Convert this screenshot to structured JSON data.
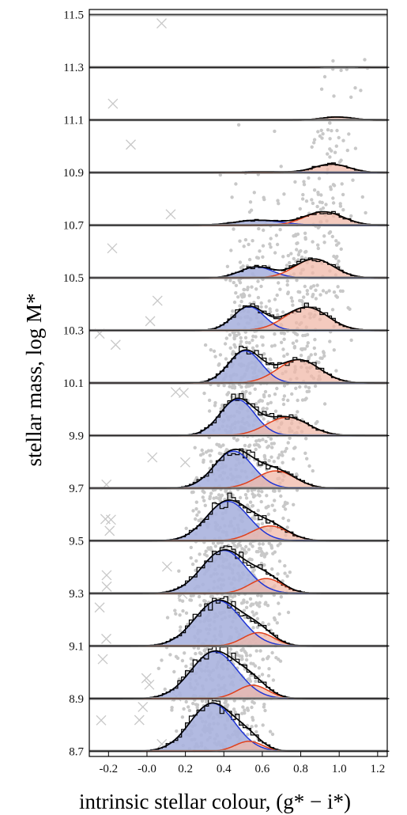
{
  "chart_data": {
    "type": "area",
    "title": "",
    "xlabel": "intrinsic stellar colour, (g* − i*)",
    "ylabel": "stellar mass, log M*",
    "xlim": [
      -0.3,
      1.25
    ],
    "ylim": [
      8.68,
      11.52
    ],
    "x_ticks": [
      "-0.2",
      "-0.0",
      "0.2",
      "0.4",
      "0.6",
      "0.8",
      "1.0",
      "1.2"
    ],
    "y_ticks": [
      "8.7",
      "8.9",
      "9.1",
      "9.3",
      "9.5",
      "9.7",
      "9.9",
      "10.1",
      "10.3",
      "10.5",
      "10.7",
      "10.9",
      "11.1",
      "11.3",
      "11.5"
    ],
    "colors": {
      "blue_line": "#1f35d6",
      "red_line": "#e0401c",
      "blue_fill": "#aab2de",
      "red_fill": "#f0b8a8",
      "scatter": "#c8c8c8",
      "histogram": "#000000"
    },
    "series": [
      {
        "name": "",
        "mass_bin": [
          8.7,
          8.9
        ],
        "blue": {
          "amp": 0.97,
          "mu": 0.34,
          "sigma": 0.115
        },
        "red": {
          "amp": 0.2,
          "mu": 0.53,
          "sigma": 0.07
        }
      },
      {
        "name": "",
        "mass_bin": [
          8.9,
          9.1
        ],
        "blue": {
          "amp": 0.95,
          "mu": 0.35,
          "sigma": 0.12
        },
        "red": {
          "amp": 0.27,
          "mu": 0.55,
          "sigma": 0.08
        }
      },
      {
        "name": "",
        "mass_bin": [
          9.1,
          9.3
        ],
        "blue": {
          "amp": 0.92,
          "mu": 0.37,
          "sigma": 0.12
        },
        "red": {
          "amp": 0.27,
          "mu": 0.58,
          "sigma": 0.08
        }
      },
      {
        "name": "",
        "mass_bin": [
          9.3,
          9.5
        ],
        "blue": {
          "amp": 0.87,
          "mu": 0.4,
          "sigma": 0.115
        },
        "red": {
          "amp": 0.3,
          "mu": 0.62,
          "sigma": 0.085
        }
      },
      {
        "name": "",
        "mass_bin": [
          9.5,
          9.7
        ],
        "blue": {
          "amp": 0.8,
          "mu": 0.42,
          "sigma": 0.11
        },
        "red": {
          "amp": 0.3,
          "mu": 0.64,
          "sigma": 0.095
        }
      },
      {
        "name": "",
        "mass_bin": [
          9.7,
          9.9
        ],
        "blue": {
          "amp": 0.75,
          "mu": 0.45,
          "sigma": 0.1
        },
        "red": {
          "amp": 0.35,
          "mu": 0.67,
          "sigma": 0.1
        }
      },
      {
        "name": "",
        "mass_bin": [
          9.9,
          10.1
        ],
        "blue": {
          "amp": 0.73,
          "mu": 0.47,
          "sigma": 0.09
        },
        "red": {
          "amp": 0.37,
          "mu": 0.73,
          "sigma": 0.11
        }
      },
      {
        "name": "",
        "mass_bin": [
          10.1,
          10.3
        ],
        "blue": {
          "amp": 0.65,
          "mu": 0.51,
          "sigma": 0.085
        },
        "red": {
          "amp": 0.47,
          "mu": 0.79,
          "sigma": 0.11
        }
      },
      {
        "name": "",
        "mass_bin": [
          10.3,
          10.5
        ],
        "blue": {
          "amp": 0.48,
          "mu": 0.53,
          "sigma": 0.08
        },
        "red": {
          "amp": 0.47,
          "mu": 0.83,
          "sigma": 0.11
        }
      },
      {
        "name": "",
        "mass_bin": [
          10.5,
          10.7
        ],
        "blue": {
          "amp": 0.22,
          "mu": 0.57,
          "sigma": 0.085
        },
        "red": {
          "amp": 0.38,
          "mu": 0.87,
          "sigma": 0.1
        }
      },
      {
        "name": "",
        "mass_bin": [
          10.7,
          10.9
        ],
        "blue": {
          "amp": 0.1,
          "mu": 0.58,
          "sigma": 0.12
        },
        "red": {
          "amp": 0.27,
          "mu": 0.92,
          "sigma": 0.1
        }
      },
      {
        "name": "",
        "mass_bin": [
          10.9,
          11.1
        ],
        "blue": {
          "amp": 0.02,
          "mu": 0.6,
          "sigma": 0.12
        },
        "red": {
          "amp": 0.17,
          "mu": 0.96,
          "sigma": 0.09
        }
      },
      {
        "name": "",
        "mass_bin": [
          11.1,
          11.3
        ],
        "blue": {
          "amp": 0.0,
          "mu": 0.6,
          "sigma": 0.1
        },
        "red": {
          "amp": 0.06,
          "mu": 0.99,
          "sigma": 0.08
        }
      },
      {
        "name": "",
        "mass_bin": [
          11.3,
          11.5
        ],
        "blue": {
          "amp": 0.0,
          "mu": 0.6,
          "sigma": 0.1
        },
        "red": {
          "amp": 0.01,
          "mu": 1.0,
          "sigma": 0.08
        }
      }
    ]
  }
}
